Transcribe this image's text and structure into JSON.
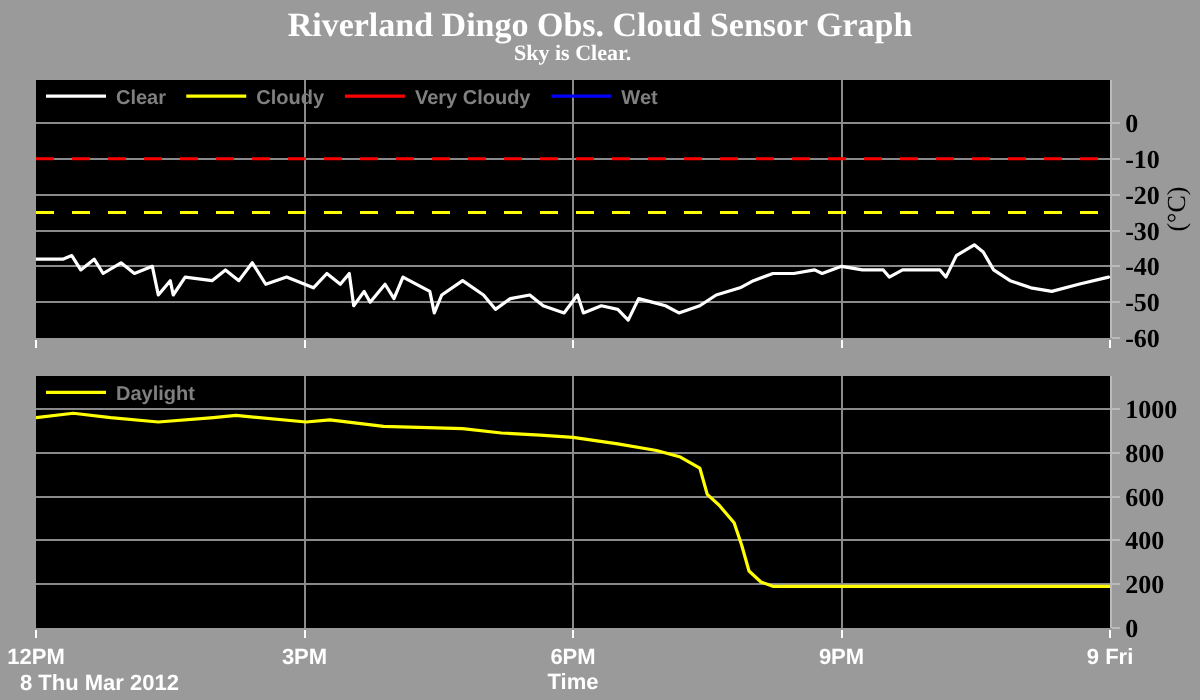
{
  "chart_data": [
    {
      "type": "line",
      "title": "Riverland Dingo Obs. Cloud Sensor Graph",
      "subtitle": "Sky is Clear.",
      "ylabel": "(°C)",
      "xlim": [
        "2012-03-08T12:00",
        "2012-03-09T00:00"
      ],
      "xticks": [
        {
          "value": "2012-03-08T12:00",
          "label": null
        },
        {
          "value": "2012-03-08T15:00",
          "label": null
        },
        {
          "value": "2012-03-08T18:00",
          "label": null
        },
        {
          "value": "2012-03-08T21:00",
          "label": null
        },
        {
          "value": "2012-03-09T00:00",
          "label": null
        }
      ],
      "ylim": [
        -60,
        12
      ],
      "yticks": [
        0,
        -10,
        -20,
        -30,
        -40,
        -50,
        -60
      ],
      "tick_labels": "y",
      "grid": true,
      "legend": "top left",
      "line_style": "solid",
      "marker": "none",
      "series": [
        {
          "name": "Clear",
          "color": "#ffffff",
          "x": [
            "2012-03-08T12:00",
            "2012-03-08T12:18",
            "2012-03-08T12:24",
            "2012-03-08T12:30",
            "2012-03-08T12:39",
            "2012-03-08T12:45",
            "2012-03-08T12:57",
            "2012-03-08T13:06",
            "2012-03-08T13:18",
            "2012-03-08T13:22",
            "2012-03-08T13:30",
            "2012-03-08T13:32",
            "2012-03-08T13:40",
            "2012-03-08T13:58",
            "2012-03-08T14:07",
            "2012-03-08T14:16",
            "2012-03-08T14:25",
            "2012-03-08T14:34",
            "2012-03-08T14:48",
            "2012-03-08T15:06",
            "2012-03-08T15:15",
            "2012-03-08T15:24",
            "2012-03-08T15:30",
            "2012-03-08T15:33",
            "2012-03-08T15:40",
            "2012-03-08T15:44",
            "2012-03-08T15:54",
            "2012-03-08T16:00",
            "2012-03-08T16:06",
            "2012-03-08T16:24",
            "2012-03-08T16:27",
            "2012-03-08T16:32",
            "2012-03-08T16:46",
            "2012-03-08T17:00",
            "2012-03-08T17:08",
            "2012-03-08T17:18",
            "2012-03-08T17:31",
            "2012-03-08T17:40",
            "2012-03-08T17:54",
            "2012-03-08T18:03",
            "2012-03-08T18:07",
            "2012-03-08T18:19",
            "2012-03-08T18:30",
            "2012-03-08T18:37",
            "2012-03-08T18:44",
            "2012-03-08T18:53",
            "2012-03-08T19:02",
            "2012-03-08T19:11",
            "2012-03-08T19:25",
            "2012-03-08T19:36",
            "2012-03-08T19:52",
            "2012-03-08T20:01",
            "2012-03-08T20:14",
            "2012-03-08T20:28",
            "2012-03-08T20:42",
            "2012-03-08T20:47",
            "2012-03-08T21:00",
            "2012-03-08T21:14",
            "2012-03-08T21:28",
            "2012-03-08T21:32",
            "2012-03-08T21:41",
            "2012-03-08T22:06",
            "2012-03-08T22:10",
            "2012-03-08T22:17",
            "2012-03-08T22:29",
            "2012-03-08T22:35",
            "2012-03-08T22:42",
            "2012-03-08T22:53",
            "2012-03-08T23:07",
            "2012-03-08T23:21",
            "2012-03-08T23:39",
            "2012-03-08T23:59"
          ],
          "values": [
            -38,
            -38,
            -37,
            -41,
            -38,
            -42,
            -39,
            -42,
            -40,
            -48,
            -44,
            -48,
            -43,
            -44,
            -41,
            -44,
            -39,
            -45,
            -43,
            -46,
            -42,
            -45,
            -42,
            -51,
            -47,
            -50,
            -45,
            -49,
            -43,
            -47,
            -53,
            -48,
            -44,
            -48,
            -52,
            -49,
            -48,
            -51,
            -53,
            -48,
            -53,
            -51,
            -52,
            -55,
            -49,
            -50,
            -51,
            -53,
            -51,
            -48,
            -46,
            -44,
            -42,
            -42,
            -41,
            -42,
            -40,
            -41,
            -41,
            -43,
            -41,
            -41,
            -43,
            -37,
            -34,
            -36,
            -41,
            -44,
            -46,
            -47,
            -45,
            -43
          ]
        },
        {
          "name": "Cloudy",
          "color": "#ffff00"
        },
        {
          "name": "Very Cloudy",
          "color": "#ff0000"
        },
        {
          "name": "Wet",
          "color": "#0000ff"
        }
      ],
      "ref_lines": [
        {
          "axis": "y",
          "value": -10,
          "color": "#ff0000",
          "line_style": "dashed"
        },
        {
          "axis": "y",
          "value": -25,
          "color": "#ffff00",
          "line_style": "dashed"
        }
      ]
    },
    {
      "type": "line",
      "xlabel": "Time",
      "annotations": [
        "8 Thu Mar 2012"
      ],
      "xlim": [
        "2012-03-08T12:00",
        "2012-03-09T00:00"
      ],
      "xticks": [
        {
          "value": "2012-03-08T12:00",
          "label": "12PM"
        },
        {
          "value": "2012-03-08T15:00",
          "label": "3PM"
        },
        {
          "value": "2012-03-08T18:00",
          "label": "6PM"
        },
        {
          "value": "2012-03-08T21:00",
          "label": "9PM"
        },
        {
          "value": "2012-03-09T00:00",
          "label": "9 Fri"
        }
      ],
      "ylim": [
        0,
        1150
      ],
      "yticks": [
        0,
        200,
        400,
        600,
        800,
        1000
      ],
      "grid": true,
      "legend": "top left",
      "line_style": "solid",
      "marker": "none",
      "series": [
        {
          "name": "Daylight",
          "color": "#ffff00",
          "x": [
            "2012-03-08T12:00",
            "2012-03-08T12:25",
            "2012-03-08T12:50",
            "2012-03-08T13:22",
            "2012-03-08T13:59",
            "2012-03-08T14:14",
            "2012-03-08T15:01",
            "2012-03-08T15:17",
            "2012-03-08T15:53",
            "2012-03-08T16:46",
            "2012-03-08T17:12",
            "2012-03-08T17:38",
            "2012-03-08T18:00",
            "2012-03-08T18:30",
            "2012-03-08T18:56",
            "2012-03-08T19:12",
            "2012-03-08T19:25",
            "2012-03-08T19:30",
            "2012-03-08T19:38",
            "2012-03-08T19:48",
            "2012-03-08T19:53",
            "2012-03-08T19:58",
            "2012-03-08T20:06",
            "2012-03-08T20:14",
            "2012-03-08T21:00",
            "2012-03-08T22:00",
            "2012-03-08T23:00",
            "2012-03-09T00:00"
          ],
          "values": [
            960,
            980,
            960,
            940,
            960,
            970,
            940,
            950,
            920,
            910,
            890,
            880,
            870,
            840,
            810,
            780,
            730,
            610,
            560,
            480,
            380,
            260,
            210,
            190,
            190,
            190,
            190,
            190
          ]
        }
      ]
    }
  ]
}
